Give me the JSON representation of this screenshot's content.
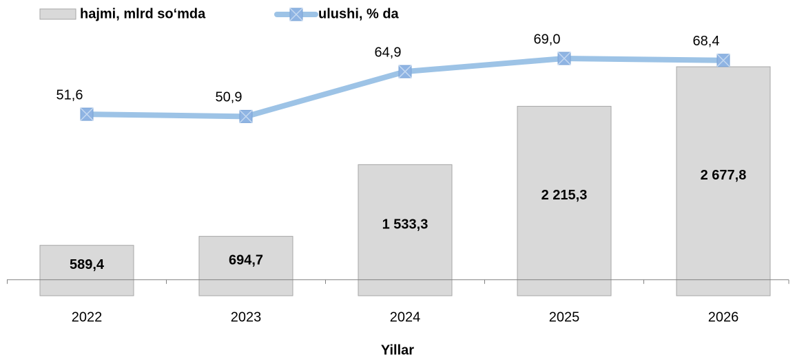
{
  "chart_data": {
    "type": "bar_line",
    "x_label": "Yillar",
    "categories": [
      "2022",
      "2023",
      "2024",
      "2025",
      "2026"
    ],
    "series": [
      {
        "name": "hajmi, mlrd so‘mda",
        "type": "bar",
        "color": "#d9d9d9",
        "values": [
          589.4,
          694.7,
          1533.3,
          2215.3,
          2677.8
        ],
        "value_labels": [
          "589,4",
          "694,7",
          "1 533,3",
          "2 215,3",
          "2 677,8"
        ]
      },
      {
        "name": "ulushi, % da",
        "type": "line",
        "axis": "y2",
        "color": "#9dc3e6",
        "values": [
          51.6,
          50.9,
          64.9,
          69.0,
          68.4
        ],
        "value_labels": [
          "51,6",
          "50,9",
          "64,9",
          "69,0",
          "68,4"
        ]
      }
    ],
    "ylim": [
      0,
      3000
    ],
    "y2lim": [
      -5,
      75
    ]
  }
}
